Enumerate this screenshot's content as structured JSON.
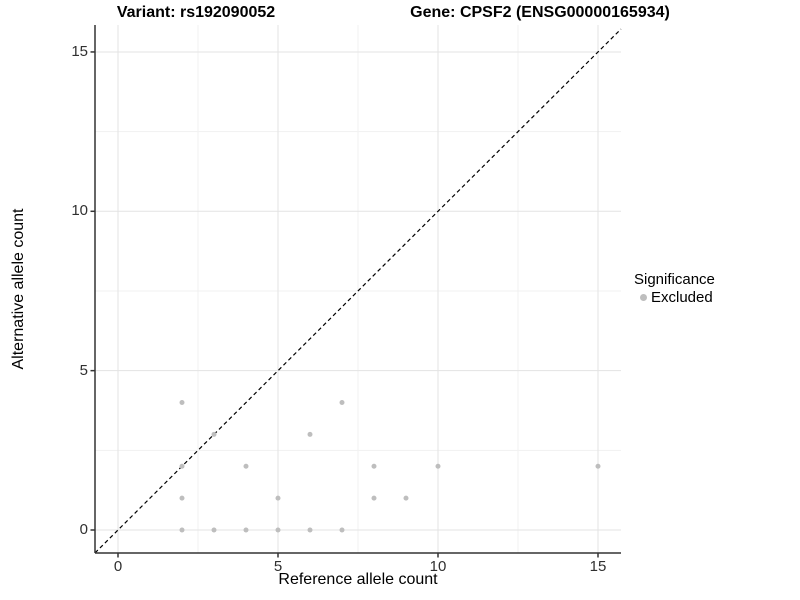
{
  "chart_data": {
    "type": "scatter",
    "title_left": "Variant: rs192090052",
    "title_right": "Gene: CPSF2 (ENSG00000165934)",
    "xlabel": "Reference allele count",
    "ylabel": "Alternative allele count",
    "xlim": [
      -0.75,
      15.75
    ],
    "ylim": [
      -0.75,
      15.75
    ],
    "xticks": [
      0,
      5,
      10,
      15
    ],
    "yticks": [
      0,
      5,
      10,
      15
    ],
    "minor_gridlines_x": [
      2.5,
      7.5,
      12.5
    ],
    "minor_gridlines_y": [
      2.5,
      7.5,
      12.5
    ],
    "grid": "on",
    "identity_line": {
      "equation": "y = x",
      "style": "dashed",
      "color": "#000000"
    },
    "legend_position": "right",
    "series": [
      {
        "name": "Excluded",
        "color": "#bebebe",
        "points": [
          [
            2,
            0
          ],
          [
            3,
            0
          ],
          [
            4,
            0
          ],
          [
            5,
            0
          ],
          [
            6,
            0
          ],
          [
            7,
            0
          ],
          [
            2,
            1
          ],
          [
            5,
            1
          ],
          [
            8,
            1
          ],
          [
            9,
            1
          ],
          [
            2,
            2
          ],
          [
            4,
            2
          ],
          [
            8,
            2
          ],
          [
            10,
            2
          ],
          [
            15,
            2
          ],
          [
            3,
            3
          ],
          [
            6,
            3
          ],
          [
            2,
            4
          ],
          [
            7,
            4
          ]
        ]
      }
    ]
  },
  "legend": {
    "title": "Significance",
    "items": [
      {
        "label": "Excluded",
        "color": "#bebebe"
      }
    ]
  },
  "colors": {
    "background": "#ffffff",
    "point": "#bebebe",
    "grid_major": "#e3e3e3",
    "grid_minor": "#f1f1f1",
    "axis_line": "#333333",
    "tick_mark": "#333333",
    "identity_line": "#000000"
  }
}
